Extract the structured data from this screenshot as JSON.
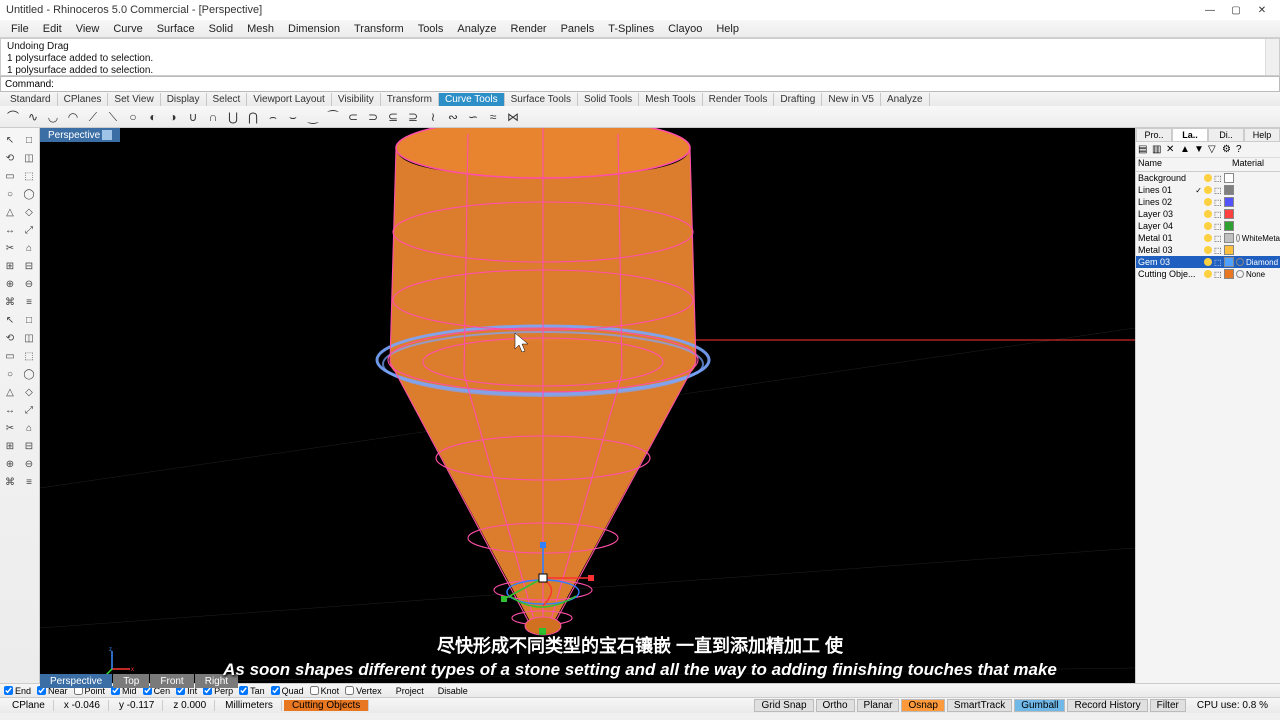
{
  "window": {
    "title": "Untitled - Rhinoceros 5.0 Commercial - [Perspective]",
    "min": "—",
    "max": "▢",
    "close": "✕"
  },
  "menu": [
    "File",
    "Edit",
    "View",
    "Curve",
    "Surface",
    "Solid",
    "Mesh",
    "Dimension",
    "Transform",
    "Tools",
    "Analyze",
    "Render",
    "Panels",
    "T-Splines",
    "Clayoo",
    "Help"
  ],
  "cmdhist": [
    "Undoing Drag",
    "1 polysurface added to selection.",
    "1 polysurface added to selection."
  ],
  "cmdprompt": "Command:",
  "tooltabs": [
    "Standard",
    "CPlanes",
    "Set View",
    "Display",
    "Select",
    "Viewport Layout",
    "Visibility",
    "Transform",
    "Curve Tools",
    "Surface Tools",
    "Solid Tools",
    "Mesh Tools",
    "Render Tools",
    "Drafting",
    "New in V5",
    "Analyze"
  ],
  "tooltabs_active": 8,
  "toolbar_colors": [
    "#333",
    "#333",
    "#333",
    "#333",
    "#333",
    "#333",
    "#333",
    "#333",
    "#333",
    "#333",
    "#333",
    "#333",
    "#333",
    "#333",
    "#333",
    "#333",
    "#333",
    "#333",
    "#333",
    "#333",
    "#333",
    "#333",
    "#333",
    "#333",
    "#333",
    "#333"
  ],
  "viewport_label": "Perspective",
  "scene": {
    "bg": "#000000",
    "obj_fill": "#e88430",
    "wireframe": "#ff4fa8",
    "rim": "#7aa6ff",
    "axis_x": "#ff3535",
    "axis_y": "#36e236",
    "axis_z": "#3a8cff",
    "gumball_x": "#ff3030",
    "gumball_y": "#30c030",
    "gumball_z": "#3080ff"
  },
  "right_tabs": [
    "Pro..",
    "La..",
    "Di..",
    "Help"
  ],
  "right_tabs_active": 1,
  "layer_header": {
    "name": "Name",
    "material": "Material"
  },
  "layers": [
    {
      "name": "Background",
      "color": "#ffffff",
      "material": ""
    },
    {
      "name": "Lines 01",
      "color": "#808080",
      "material": "",
      "check": true
    },
    {
      "name": "Lines 02",
      "color": "#5454ff",
      "material": ""
    },
    {
      "name": "Layer 03",
      "color": "#ff4040",
      "material": ""
    },
    {
      "name": "Layer 04",
      "color": "#30a030",
      "material": ""
    },
    {
      "name": "Metal 01",
      "color": "#c0c0c0",
      "material": "WhiteMeta"
    },
    {
      "name": "Metal 03",
      "color": "#ffc040",
      "material": ""
    },
    {
      "name": "Gem 03",
      "color": "#4fa0ff",
      "material": "Diamond",
      "selected": true
    },
    {
      "name": "Cutting Obje...",
      "color": "#e87722",
      "material": "None"
    }
  ],
  "vp_bottom_tabs": [
    "Perspective",
    "Top",
    "Front",
    "Right"
  ],
  "osnap": {
    "items": [
      {
        "label": "End",
        "checked": true
      },
      {
        "label": "Near",
        "checked": true
      },
      {
        "label": "Point",
        "checked": false
      },
      {
        "label": "Mid",
        "checked": true
      },
      {
        "label": "Cen",
        "checked": true
      },
      {
        "label": "Int",
        "checked": true
      },
      {
        "label": "Perp",
        "checked": true
      },
      {
        "label": "Tan",
        "checked": true
      },
      {
        "label": "Quad",
        "checked": true
      },
      {
        "label": "Knot",
        "checked": false
      },
      {
        "label": "Vertex",
        "checked": false
      }
    ],
    "proj": "Project",
    "disable": "Disable"
  },
  "status": {
    "cplane": "CPlane",
    "x": "x -0.046",
    "y": "y -0.117",
    "z": "z 0.000",
    "units": "Millimeters",
    "layer": "Cutting Objects",
    "toggles": [
      "Grid Snap",
      "Ortho",
      "Planar",
      "Osnap",
      "SmartTrack",
      "Gumball",
      "Record History",
      "Filter"
    ],
    "toggle_on": [
      false,
      false,
      false,
      true,
      false,
      true,
      false,
      false
    ],
    "cpu": "CPU use: 0.8 %"
  },
  "subtitle_cn": "尽快形成不同类型的宝石镶嵌 一直到添加精加工 使",
  "subtitle_en": "As soon shapes different types of a stone setting and all the way to adding finishing touches that make"
}
